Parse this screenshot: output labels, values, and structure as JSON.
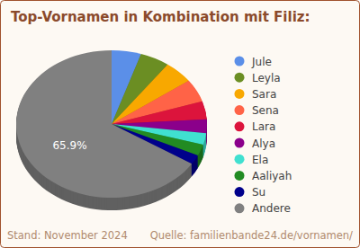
{
  "chart_data": {
    "type": "pie",
    "title": "Top-Vornamen in Kombination mit Filiz:",
    "categories": [
      "Jule",
      "Leyla",
      "Sara",
      "Sena",
      "Lara",
      "Alya",
      "Ela",
      "Aaliyah",
      "Su",
      "Andere"
    ],
    "values": [
      5,
      5,
      5,
      5,
      4,
      3,
      2.5,
      2.5,
      2.1,
      65.9
    ],
    "colors": [
      "#5b8fe8",
      "#6b8e23",
      "#f8a800",
      "#ff6347",
      "#dc143c",
      "#8b008b",
      "#40e0d0",
      "#228b22",
      "#00008b",
      "#808080"
    ],
    "data_labels": true,
    "value_labels": [
      null,
      null,
      null,
      null,
      null,
      null,
      null,
      null,
      null,
      "65.9%"
    ],
    "legend": "right",
    "annotations": [
      "Stand: November 2024",
      "Quelle: familienbande24.de/vornamen/"
    ]
  }
}
